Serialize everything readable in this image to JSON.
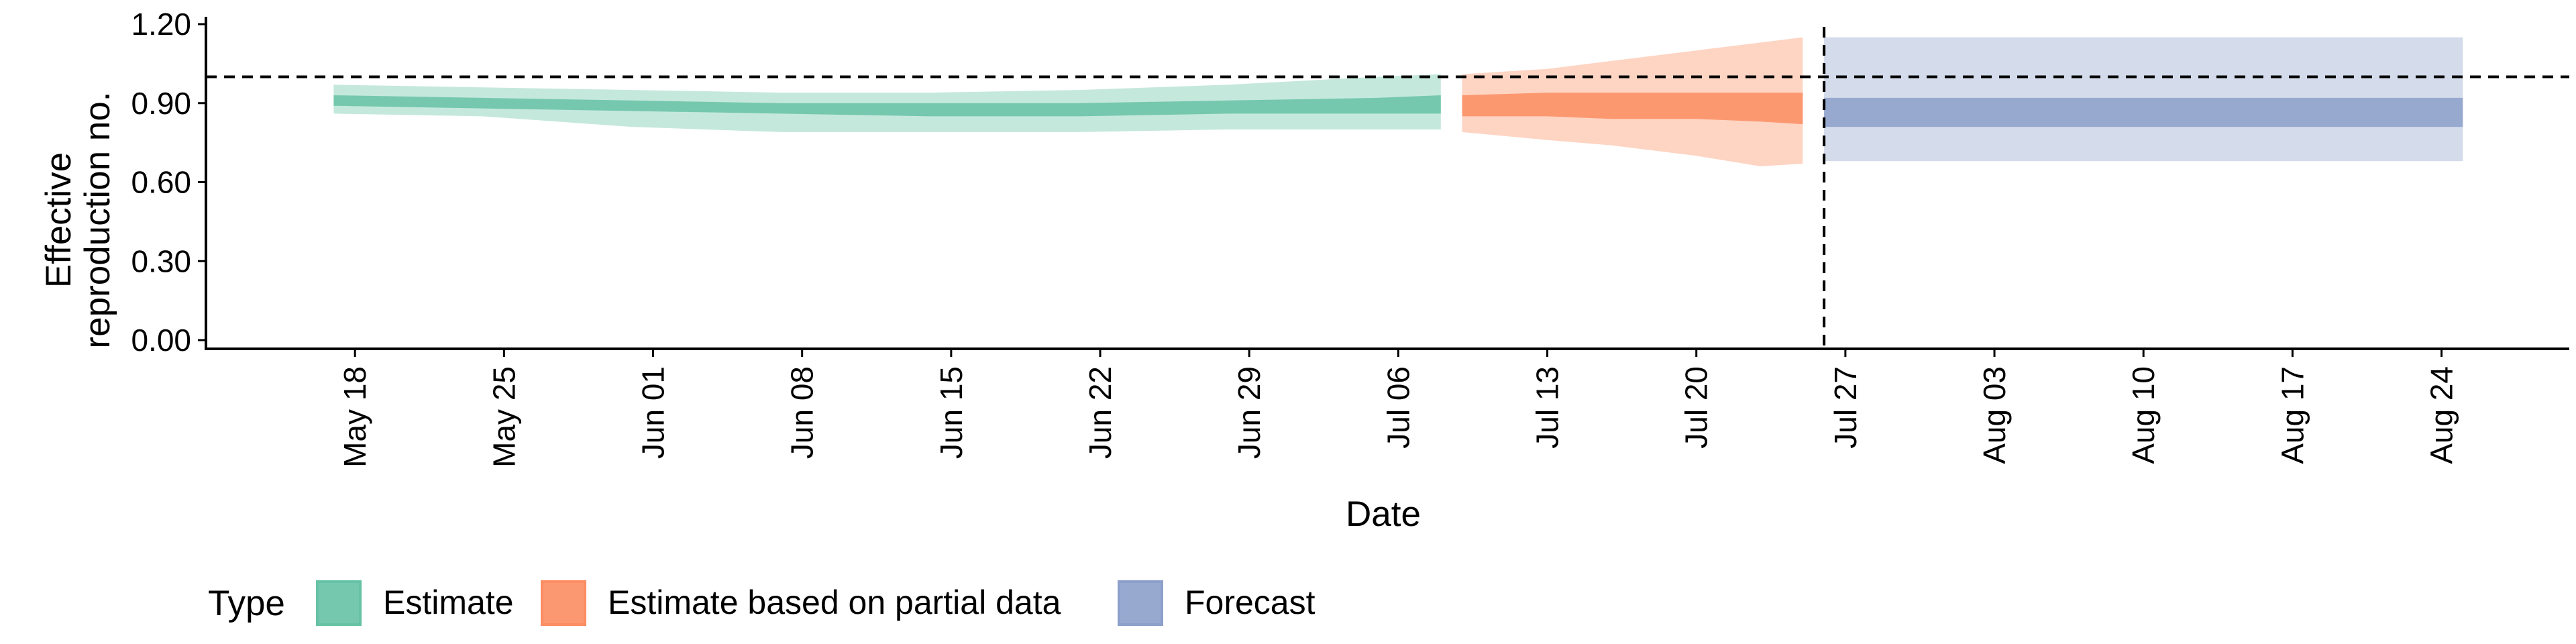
{
  "chart_data": {
    "type": "area",
    "title": "",
    "xlabel": "Date",
    "ylabel": "Effective\nreproduction no.",
    "ylim": [
      0.0,
      1.2
    ],
    "y_ticks": [
      "0.00",
      "0.30",
      "0.60",
      "0.90",
      "1.20"
    ],
    "y_tick_values": [
      0.0,
      0.3,
      0.6,
      0.9,
      1.2
    ],
    "x_range": [
      "2020-05-11",
      "2020-08-30"
    ],
    "x_ticks": [
      "May 18",
      "May 25",
      "Jun 01",
      "Jun 08",
      "Jun 15",
      "Jun 22",
      "Jun 29",
      "Jul 06",
      "Jul 13",
      "Jul 20",
      "Jul 27",
      "Aug 03",
      "Aug 10",
      "Aug 17",
      "Aug 24"
    ],
    "x_tick_dates": [
      "2020-05-18",
      "2020-05-25",
      "2020-06-01",
      "2020-06-08",
      "2020-06-15",
      "2020-06-22",
      "2020-06-29",
      "2020-07-06",
      "2020-07-13",
      "2020-07-20",
      "2020-07-27",
      "2020-08-03",
      "2020-08-10",
      "2020-08-17",
      "2020-08-24"
    ],
    "reference_line_y": 1.0,
    "reference_line_x": "2020-07-26",
    "grid": false,
    "legend": {
      "position": "bottom",
      "title": "Type",
      "items": [
        "Estimate",
        "Estimate based on partial data",
        "Forecast"
      ]
    },
    "series": [
      {
        "name": "Estimate",
        "color": "#66c2a5",
        "x": [
          "2020-05-17",
          "2020-05-24",
          "2020-05-31",
          "2020-06-07",
          "2020-06-14",
          "2020-06-21",
          "2020-06-28",
          "2020-07-05",
          "2020-07-08"
        ],
        "outer_low": [
          0.86,
          0.85,
          0.81,
          0.79,
          0.79,
          0.79,
          0.8,
          0.8,
          0.8
        ],
        "outer_high": [
          0.97,
          0.96,
          0.95,
          0.94,
          0.94,
          0.95,
          0.97,
          1.0,
          1.01
        ],
        "inner_low": [
          0.89,
          0.88,
          0.87,
          0.86,
          0.85,
          0.85,
          0.86,
          0.86,
          0.86
        ],
        "inner_high": [
          0.93,
          0.92,
          0.91,
          0.9,
          0.9,
          0.9,
          0.91,
          0.92,
          0.93
        ]
      },
      {
        "name": "Estimate based on partial data",
        "color": "#fc8d62",
        "x": [
          "2020-07-09",
          "2020-07-13",
          "2020-07-16",
          "2020-07-20",
          "2020-07-23",
          "2020-07-25"
        ],
        "outer_low": [
          0.79,
          0.76,
          0.74,
          0.7,
          0.66,
          0.67
        ],
        "outer_high": [
          1.01,
          1.03,
          1.06,
          1.1,
          1.13,
          1.15
        ],
        "inner_low": [
          0.85,
          0.85,
          0.84,
          0.84,
          0.83,
          0.82
        ],
        "inner_high": [
          0.93,
          0.94,
          0.94,
          0.94,
          0.94,
          0.94
        ]
      },
      {
        "name": "Forecast",
        "color": "#8da0cb",
        "x": [
          "2020-07-26",
          "2020-08-25"
        ],
        "outer_low": [
          0.68,
          0.68
        ],
        "outer_high": [
          1.15,
          1.15
        ],
        "inner_low": [
          0.81,
          0.81
        ],
        "inner_high": [
          0.92,
          0.92
        ]
      }
    ]
  }
}
